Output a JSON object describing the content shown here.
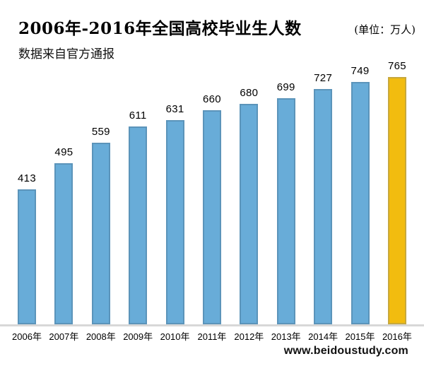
{
  "header": {
    "title": "2006年-2016年全国高校毕业生人数",
    "unit_label": "(单位：万人)",
    "subtitle": "数据来自官方通报"
  },
  "footer": {
    "website": "www.beidoustudy.com"
  },
  "chart_data": {
    "type": "bar",
    "title": "2006年-2016年全国高校毕业生人数",
    "subtitle": "数据来自官方通报",
    "unit": "万人",
    "categories": [
      "2006年",
      "2007年",
      "2008年",
      "2009年",
      "2010年",
      "2011年",
      "2012年",
      "2013年",
      "2014年",
      "2015年",
      "2016年"
    ],
    "values": [
      413,
      495,
      559,
      611,
      631,
      660,
      680,
      699,
      727,
      749,
      765
    ],
    "data_labels_shown": true,
    "xlabel": "",
    "ylabel": "",
    "ylim": [
      0,
      800
    ],
    "grid": false,
    "legend": false,
    "bar_color": "#68ACD8",
    "bar_border_color": "#5B94BA",
    "highlight_index": 10,
    "highlight_color": "#F2BC0F",
    "highlight_border_color": "#C7A83C",
    "axis_line_color": "#D8D8D8"
  }
}
